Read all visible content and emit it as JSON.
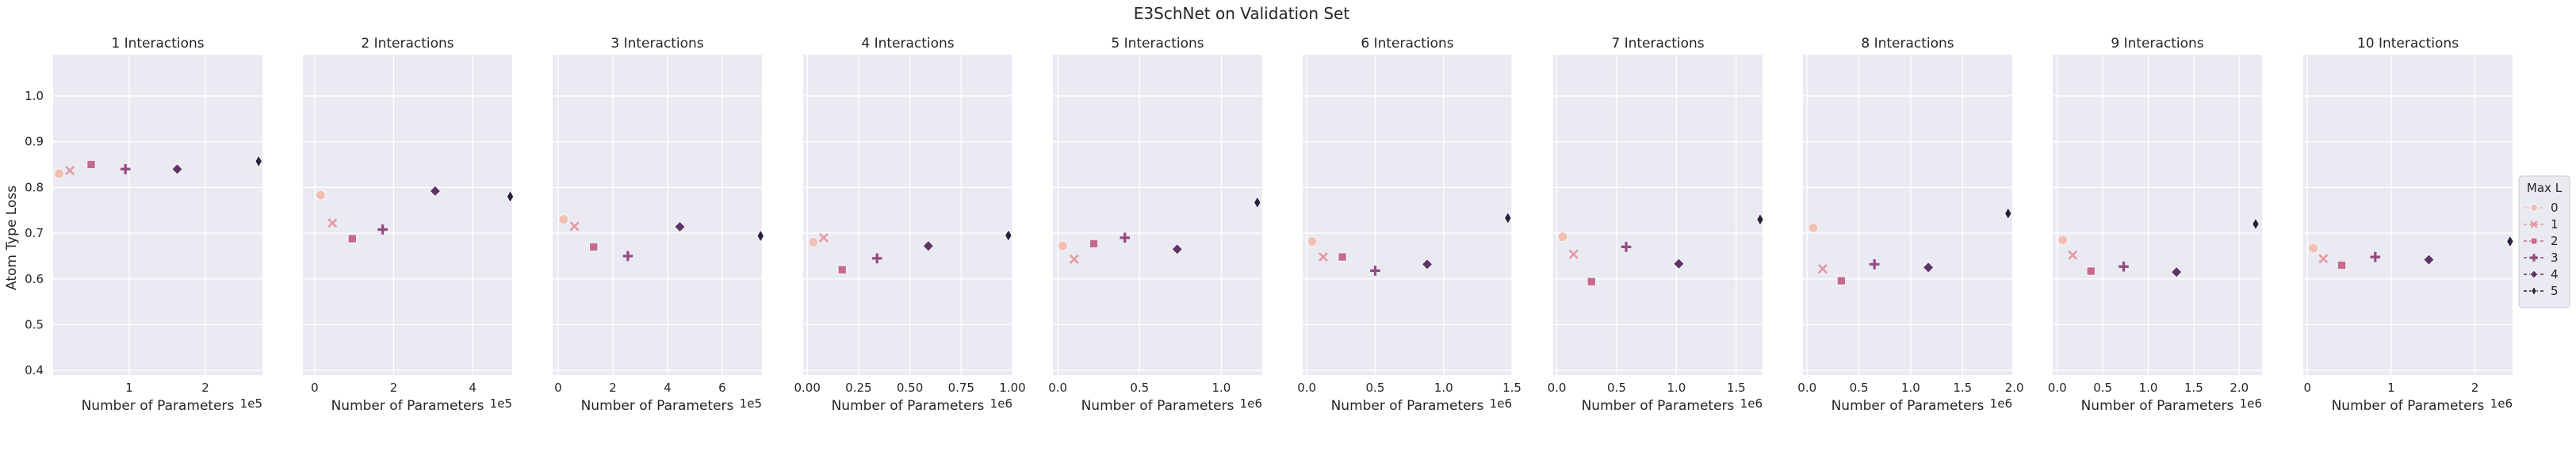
{
  "chart_data": {
    "type": "scatter",
    "title": "E3SchNet on Validation Set",
    "ylabel": "Atom Type Loss",
    "ylim": [
      0.39,
      1.09
    ],
    "yticks": [
      0.4,
      0.5,
      0.6,
      0.7,
      0.8,
      0.9,
      1.0
    ],
    "grid": true,
    "legend": {
      "title": "Max L",
      "placement": "right",
      "entries": [
        "0",
        "1",
        "2",
        "3",
        "4",
        "5"
      ],
      "colors": [
        "#f1c0b4",
        "#e39aa3",
        "#c56a8e",
        "#944a82",
        "#5e3367",
        "#2c1f3e"
      ],
      "markers": [
        "circle",
        "x",
        "square",
        "plus",
        "diamond",
        "thin-diamond"
      ]
    },
    "panels": [
      {
        "title": "1 Interactions",
        "xlabel": "Number of Parameters",
        "exp_label": "1e5",
        "xlim": [
          0.0,
          2.75
        ],
        "xticks": [
          1,
          2
        ],
        "xtick_labels": [
          "1",
          "2"
        ],
        "points": [
          {
            "max_l": "0",
            "x": 0.08,
            "y": 0.83
          },
          {
            "max_l": "1",
            "x": 0.22,
            "y": 0.837
          },
          {
            "max_l": "2",
            "x": 0.5,
            "y": 0.85
          },
          {
            "max_l": "3",
            "x": 0.95,
            "y": 0.84
          },
          {
            "max_l": "4",
            "x": 1.63,
            "y": 0.84
          },
          {
            "max_l": "5",
            "x": 2.7,
            "y": 0.857
          }
        ]
      },
      {
        "title": "2 Interactions",
        "xlabel": "Number of Parameters",
        "exp_label": "1e5",
        "xlim": [
          -0.3,
          5.0
        ],
        "xticks": [
          0,
          2,
          4
        ],
        "xtick_labels": [
          "0",
          "2",
          "4"
        ],
        "points": [
          {
            "max_l": "0",
            "x": 0.15,
            "y": 0.783
          },
          {
            "max_l": "1",
            "x": 0.45,
            "y": 0.722
          },
          {
            "max_l": "2",
            "x": 0.95,
            "y": 0.688
          },
          {
            "max_l": "3",
            "x": 1.72,
            "y": 0.708
          },
          {
            "max_l": "4",
            "x": 3.05,
            "y": 0.792
          },
          {
            "max_l": "5",
            "x": 4.95,
            "y": 0.78
          }
        ]
      },
      {
        "title": "3 Interactions",
        "xlabel": "Number of Parameters",
        "exp_label": "1e5",
        "xlim": [
          -0.2,
          7.45
        ],
        "xticks": [
          0,
          2,
          4,
          6
        ],
        "xtick_labels": [
          "0",
          "2",
          "4",
          "6"
        ],
        "points": [
          {
            "max_l": "0",
            "x": 0.2,
            "y": 0.73
          },
          {
            "max_l": "1",
            "x": 0.6,
            "y": 0.715
          },
          {
            "max_l": "2",
            "x": 1.3,
            "y": 0.67
          },
          {
            "max_l": "3",
            "x": 2.55,
            "y": 0.65
          },
          {
            "max_l": "4",
            "x": 4.45,
            "y": 0.714
          },
          {
            "max_l": "5",
            "x": 7.4,
            "y": 0.694
          }
        ]
      },
      {
        "title": "4 Interactions",
        "xlabel": "Number of Parameters",
        "exp_label": "1e6",
        "xlim": [
          -0.02,
          1.0
        ],
        "xticks": [
          0.0,
          0.25,
          0.5,
          0.75,
          1.0
        ],
        "xtick_labels": [
          "0.00",
          "0.25",
          "0.50",
          "0.75",
          "1.00"
        ],
        "points": [
          {
            "max_l": "0",
            "x": 0.03,
            "y": 0.68
          },
          {
            "max_l": "1",
            "x": 0.08,
            "y": 0.69
          },
          {
            "max_l": "2",
            "x": 0.17,
            "y": 0.62
          },
          {
            "max_l": "3",
            "x": 0.34,
            "y": 0.645
          },
          {
            "max_l": "4",
            "x": 0.59,
            "y": 0.672
          },
          {
            "max_l": "5",
            "x": 0.98,
            "y": 0.695
          }
        ]
      },
      {
        "title": "5 Interactions",
        "xlabel": "Number of Parameters",
        "exp_label": "1e6",
        "xlim": [
          -0.03,
          1.25
        ],
        "xticks": [
          0.0,
          0.5,
          1.0
        ],
        "xtick_labels": [
          "0.0",
          "0.5",
          "1.0"
        ],
        "points": [
          {
            "max_l": "0",
            "x": 0.03,
            "y": 0.672
          },
          {
            "max_l": "1",
            "x": 0.1,
            "y": 0.643
          },
          {
            "max_l": "2",
            "x": 0.22,
            "y": 0.677
          },
          {
            "max_l": "3",
            "x": 0.41,
            "y": 0.69
          },
          {
            "max_l": "4",
            "x": 0.73,
            "y": 0.665
          },
          {
            "max_l": "5",
            "x": 1.22,
            "y": 0.767
          }
        ]
      },
      {
        "title": "6 Interactions",
        "xlabel": "Number of Parameters",
        "exp_label": "1e6",
        "xlim": [
          -0.03,
          1.5
        ],
        "xticks": [
          0.0,
          0.5,
          1.0,
          1.5
        ],
        "xtick_labels": [
          "0.0",
          "0.5",
          "1.0",
          "1.5"
        ],
        "points": [
          {
            "max_l": "0",
            "x": 0.04,
            "y": 0.682
          },
          {
            "max_l": "1",
            "x": 0.12,
            "y": 0.648
          },
          {
            "max_l": "2",
            "x": 0.26,
            "y": 0.648
          },
          {
            "max_l": "3",
            "x": 0.5,
            "y": 0.618
          },
          {
            "max_l": "4",
            "x": 0.88,
            "y": 0.632
          },
          {
            "max_l": "5",
            "x": 1.47,
            "y": 0.733
          }
        ]
      },
      {
        "title": "7 Interactions",
        "xlabel": "Number of Parameters",
        "exp_label": "1e6",
        "xlim": [
          -0.03,
          1.72
        ],
        "xticks": [
          0.0,
          0.5,
          1.0,
          1.5
        ],
        "xtick_labels": [
          "0.0",
          "0.5",
          "1.0",
          "1.5"
        ],
        "points": [
          {
            "max_l": "0",
            "x": 0.05,
            "y": 0.692
          },
          {
            "max_l": "1",
            "x": 0.14,
            "y": 0.654
          },
          {
            "max_l": "2",
            "x": 0.29,
            "y": 0.594
          },
          {
            "max_l": "3",
            "x": 0.58,
            "y": 0.67
          },
          {
            "max_l": "4",
            "x": 1.02,
            "y": 0.633
          },
          {
            "max_l": "5",
            "x": 1.7,
            "y": 0.73
          }
        ]
      },
      {
        "title": "8 Interactions",
        "xlabel": "Number of Parameters",
        "exp_label": "1e6",
        "xlim": [
          -0.04,
          1.98
        ],
        "xticks": [
          0.0,
          0.5,
          1.0,
          1.5,
          2.0
        ],
        "xtick_labels": [
          "0.0",
          "0.5",
          "1.0",
          "1.5",
          "2.0"
        ],
        "points": [
          {
            "max_l": "0",
            "x": 0.06,
            "y": 0.712
          },
          {
            "max_l": "1",
            "x": 0.15,
            "y": 0.622
          },
          {
            "max_l": "2",
            "x": 0.33,
            "y": 0.596
          },
          {
            "max_l": "3",
            "x": 0.65,
            "y": 0.632
          },
          {
            "max_l": "4",
            "x": 1.17,
            "y": 0.625
          },
          {
            "max_l": "5",
            "x": 1.94,
            "y": 0.743
          }
        ]
      },
      {
        "title": "9 Interactions",
        "xlabel": "Number of Parameters",
        "exp_label": "1e6",
        "xlim": [
          -0.05,
          2.25
        ],
        "xticks": [
          0.0,
          0.5,
          1.0,
          1.5,
          2.0
        ],
        "xtick_labels": [
          "0.0",
          "0.5",
          "1.0",
          "1.5",
          "2.0"
        ],
        "points": [
          {
            "max_l": "0",
            "x": 0.06,
            "y": 0.685
          },
          {
            "max_l": "1",
            "x": 0.17,
            "y": 0.652
          },
          {
            "max_l": "2",
            "x": 0.37,
            "y": 0.617
          },
          {
            "max_l": "3",
            "x": 0.73,
            "y": 0.627
          },
          {
            "max_l": "4",
            "x": 1.31,
            "y": 0.615
          },
          {
            "max_l": "5",
            "x": 2.18,
            "y": 0.72
          }
        ]
      },
      {
        "title": "10 Interactions",
        "xlabel": "Number of Parameters",
        "exp_label": "1e6",
        "xlim": [
          -0.05,
          2.45
        ],
        "xticks": [
          0,
          1,
          2
        ],
        "xtick_labels": [
          "0",
          "1",
          "2"
        ],
        "points": [
          {
            "max_l": "0",
            "x": 0.07,
            "y": 0.667
          },
          {
            "max_l": "1",
            "x": 0.19,
            "y": 0.644
          },
          {
            "max_l": "2",
            "x": 0.41,
            "y": 0.63
          },
          {
            "max_l": "3",
            "x": 0.81,
            "y": 0.648
          },
          {
            "max_l": "4",
            "x": 1.45,
            "y": 0.642
          },
          {
            "max_l": "5",
            "x": 2.42,
            "y": 0.682
          }
        ]
      }
    ]
  }
}
